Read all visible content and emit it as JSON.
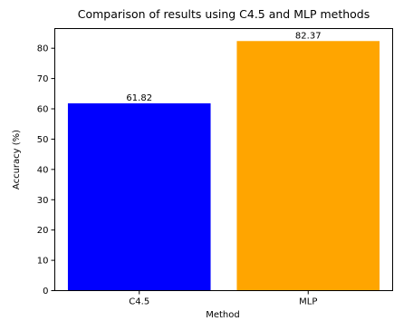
{
  "chart_data": {
    "type": "bar",
    "title": "Comparison of results using C4.5 and MLP methods",
    "xlabel": "Method",
    "ylabel": "Accuracy (%)",
    "categories": [
      "C4.5",
      "MLP"
    ],
    "values": [
      61.82,
      82.37
    ],
    "value_labels": [
      "61.82",
      "82.37"
    ],
    "colors": [
      "#0000ff",
      "#ffa500"
    ],
    "ylim": [
      0,
      86.49
    ],
    "yticks": [
      0,
      10,
      20,
      30,
      40,
      50,
      60,
      70,
      80
    ],
    "grid": false,
    "legend": "none"
  }
}
